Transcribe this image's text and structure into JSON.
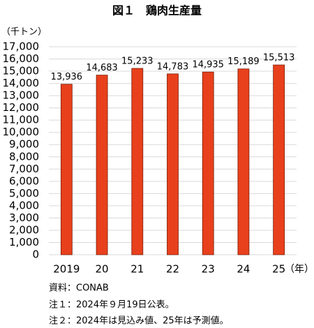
{
  "chart_data": {
    "type": "bar",
    "title": "図１　鶏肉生産量",
    "y_axis_label": "（千トン）",
    "x_axis_label": "（年）",
    "categories": [
      "2019",
      "20",
      "21",
      "22",
      "23",
      "24",
      "25"
    ],
    "values": [
      13936,
      14683,
      15233,
      14783,
      14935,
      15189,
      15513
    ],
    "value_labels": [
      "13,936",
      "14,683",
      "15,233",
      "14,783",
      "14,935",
      "15,189",
      "15,513"
    ],
    "color": "#e8401c",
    "ylim": [
      0,
      17000
    ],
    "yticks": [
      0,
      {
        "value": 1000,
        "label": "1,000"
      },
      {
        "value": 2000,
        "label": "2,000"
      },
      {
        "value": 3000,
        "label": "3,000"
      },
      {
        "value": 4000,
        "label": "4,000"
      },
      {
        "value": 5000,
        "label": "5,000"
      },
      {
        "value": 6000,
        "label": "6,000"
      },
      {
        "value": 7000,
        "label": "7,000"
      },
      {
        "value": 8000,
        "label": "8,000"
      },
      {
        "value": 9000,
        "label": "9,000"
      },
      {
        "value": 10000,
        "label": "10,000"
      },
      {
        "value": 11000,
        "label": "11,000"
      },
      {
        "value": 12000,
        "label": "12,000"
      },
      {
        "value": 13000,
        "label": "13,000"
      },
      {
        "value": 14000,
        "label": "14,000"
      },
      {
        "value": 15000,
        "label": "15,000"
      },
      {
        "value": 16000,
        "label": "16,000"
      },
      {
        "value": 17000,
        "label": "17,000"
      }
    ],
    "grid": true,
    "notes": [
      "資料：CONAB",
      "注１：2024年９月19日公表。",
      "注２：2024年は見込み値、25年は予測値。"
    ]
  }
}
